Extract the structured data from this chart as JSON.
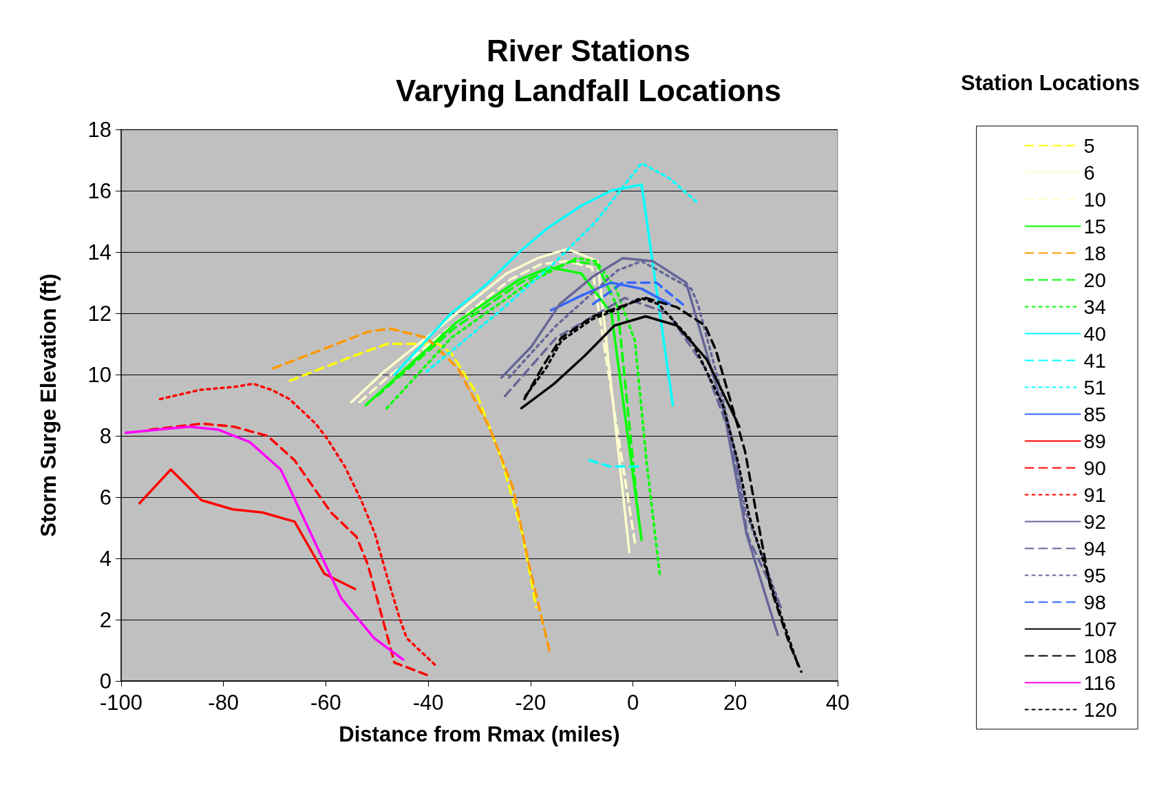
{
  "chart_data": {
    "type": "line",
    "title": "River Stations",
    "subtitle": "Varying Landfall Locations",
    "xlabel": "Distance from Rmax (miles)",
    "ylabel": "Storm Surge Elevation (ft)",
    "legend_title": "Station Locations",
    "xlim": [
      -100,
      40
    ],
    "xticks": [
      -100,
      -80,
      -60,
      -40,
      -20,
      0,
      20,
      40
    ],
    "ylim": [
      0,
      18
    ],
    "yticks": [
      0,
      2,
      4,
      6,
      8,
      10,
      12,
      14,
      16,
      18
    ],
    "grid": "y",
    "legend": "right",
    "marker": "none",
    "series": [
      {
        "name": "5",
        "color": "#ffff00",
        "line_style": "dashed",
        "x": [
          -67,
          -54.7,
          -48,
          -38.1,
          -35.5,
          -30.6,
          -25.8,
          -21.6,
          -18.9
        ],
        "values": [
          9.8,
          10.6,
          11,
          11,
          10.7,
          9.4,
          7.3,
          4.8,
          2.4
        ]
      },
      {
        "name": "6",
        "color": "#ffffcc",
        "line_style": "solid",
        "x": [
          -55,
          -48.6,
          -24.7,
          -18.6,
          -12.8,
          -6.9,
          -0.7
        ],
        "values": [
          9.1,
          10.1,
          13.3,
          13.8,
          14.1,
          13.7,
          4.2
        ]
      },
      {
        "name": "10",
        "color": "#ffffcc",
        "line_style": "dashed",
        "x": [
          -53.4,
          -48,
          -24,
          -18,
          -13,
          -8,
          0.4
        ],
        "values": [
          9.1,
          9.9,
          13.1,
          13.6,
          13.7,
          13.5,
          4.5
        ]
      },
      {
        "name": "15",
        "color": "#00ff00",
        "line_style": "solid",
        "x": [
          -52.2,
          -34.5,
          -22.2,
          -16.2,
          -10.1,
          -4.2,
          1.7
        ],
        "values": [
          9,
          11.7,
          13.1,
          13.5,
          13.3,
          12,
          4.6
        ]
      },
      {
        "name": "18",
        "color": "#ff9900",
        "line_style": "dashed",
        "x": [
          -70.3,
          -51.7,
          -47.4,
          -40.3,
          -36.6,
          -34.2,
          -28.1,
          -23.4,
          -20.3,
          -16.2
        ],
        "values": [
          10.2,
          11.4,
          11.5,
          11.2,
          10.6,
          10.2,
          8.3,
          6.3,
          3.8,
          0.9
        ]
      },
      {
        "name": "20",
        "color": "#00ff00",
        "line_style": "dashed",
        "x": [
          -50,
          -35,
          -22,
          -12,
          -7,
          -3,
          1.2
        ],
        "values": [
          9.3,
          11.5,
          13,
          13.7,
          13.6,
          12.2,
          5.2
        ]
      },
      {
        "name": "34",
        "color": "#00ff00",
        "line_style": "dotted",
        "x": [
          -48.1,
          -35.5,
          -20.3,
          -11,
          -7.2,
          -3.3,
          0.4,
          2.7,
          5.3
        ],
        "values": [
          8.9,
          11.2,
          13,
          13.8,
          13.7,
          12.8,
          11.1,
          7.1,
          3.4
        ]
      },
      {
        "name": "40",
        "color": "#00ffff",
        "line_style": "solid",
        "x": [
          -46.6,
          -35.5,
          -28.9,
          -22.2,
          -16.5,
          -10.2,
          -4.3,
          1.7,
          7.8
        ],
        "values": [
          10,
          12,
          12.9,
          14,
          14.8,
          15.5,
          16,
          16.2,
          9
        ]
      },
      {
        "name": "41",
        "color": "#00ffff",
        "line_style": "dashed",
        "x": [
          -8.5,
          -4.5,
          1.5
        ],
        "values": [
          7.2,
          7,
          7
        ]
      },
      {
        "name": "51",
        "color": "#00ffff",
        "line_style": "dotted",
        "x": [
          -40.3,
          -25.8,
          -15,
          -7.2,
          1.7,
          7.2,
          12.7
        ],
        "values": [
          10.1,
          12.1,
          13.7,
          15,
          16.9,
          16.4,
          15.6
        ]
      },
      {
        "name": "85",
        "color": "#3366ff",
        "line_style": "solid",
        "x": [
          -16,
          -9.8,
          -4.3,
          1.7,
          7.2
        ],
        "values": [
          12.1,
          12.6,
          13,
          12.8,
          12.3
        ]
      },
      {
        "name": "89",
        "color": "#ff0000",
        "line_style": "solid",
        "x": [
          -96.4,
          -90.3,
          -84.3,
          -78.2,
          -72.4,
          -66.1,
          -60.3,
          -54.3
        ],
        "values": [
          5.8,
          6.9,
          5.9,
          5.6,
          5.5,
          5.2,
          3.5,
          3
        ]
      },
      {
        "name": "90",
        "color": "#ff0000",
        "line_style": "dashed",
        "x": [
          -94.4,
          -84.1,
          -78,
          -71.4,
          -66.1,
          -59,
          -54,
          -51.8,
          -46.6,
          -40.3
        ],
        "values": [
          8.2,
          8.4,
          8.3,
          8,
          7.2,
          5.5,
          4.7,
          3.8,
          0.6,
          0.2
        ]
      },
      {
        "name": "91",
        "color": "#ff0000",
        "line_style": "dotted",
        "x": [
          -92.4,
          -84.6,
          -77.8,
          -74.2,
          -70.6,
          -67.1,
          -62,
          -59.7,
          -56.3,
          -53.1,
          -50.4,
          -48.2,
          -45.5,
          -44.2,
          -38.5
        ],
        "values": [
          9.2,
          9.5,
          9.6,
          9.7,
          9.5,
          9.2,
          8.4,
          7.9,
          7,
          5.9,
          4.8,
          3.5,
          2,
          1.4,
          0.5
        ]
      },
      {
        "name": "92",
        "color": "#666699",
        "line_style": "solid",
        "x": [
          -25.7,
          -19.9,
          -14.3,
          -7.8,
          -2,
          3.9,
          10.4,
          17.9,
          22.2,
          28.3
        ],
        "values": [
          9.9,
          10.9,
          12.3,
          13.2,
          13.8,
          13.7,
          13,
          8.7,
          4.8,
          1.5
        ]
      },
      {
        "name": "94",
        "color": "#666699",
        "line_style": "dashed",
        "x": [
          -25,
          -15,
          -1.6,
          6.9,
          14.2,
          19.1,
          22.5,
          28.9
        ],
        "values": [
          9.3,
          11.2,
          12.5,
          12,
          10.2,
          8,
          4.7,
          2.4
        ]
      },
      {
        "name": "95",
        "color": "#666699",
        "line_style": "dotted",
        "x": [
          -24.2,
          -15,
          -3,
          1.7,
          11.4,
          12.7,
          16.7,
          20.2,
          21.9,
          28.9
        ],
        "values": [
          9.9,
          11.6,
          13.4,
          13.7,
          12.8,
          12.3,
          9.8,
          7.3,
          5.6,
          2.4
        ]
      },
      {
        "name": "98",
        "color": "#3366ff",
        "line_style": "dashed",
        "x": [
          -7.8,
          -2,
          1.7,
          4.6,
          10.4
        ],
        "values": [
          12.3,
          13,
          13,
          13,
          12.2
        ]
      },
      {
        "name": "107",
        "color": "#000000",
        "line_style": "solid",
        "x": [
          -21.8,
          -15.4,
          -9.5,
          -3.6,
          2.5,
          8.6,
          14.4,
          20.8
        ],
        "values": [
          8.9,
          9.7,
          10.6,
          11.6,
          11.9,
          11.6,
          10.5,
          8.3
        ]
      },
      {
        "name": "108",
        "color": "#000000",
        "line_style": "dashed",
        "x": [
          -21.2,
          -17.5,
          -14,
          -7.8,
          -1,
          2.5,
          8.6,
          14.1,
          16.2,
          21.9,
          24.2,
          26.8,
          30.6,
          32.9
        ],
        "values": [
          9.2,
          10.3,
          11.2,
          11.9,
          12.3,
          12.5,
          12.2,
          11.6,
          10.8,
          7.5,
          5.4,
          3.1,
          1.2,
          0.3
        ]
      },
      {
        "name": "116",
        "color": "#ff00ff",
        "line_style": "solid",
        "x": [
          -99.1,
          -86.7,
          -81,
          -74.9,
          -68.8,
          -57,
          -50.6,
          -44.9
        ],
        "values": [
          8.1,
          8.3,
          8.2,
          7.8,
          6.9,
          2.7,
          1.4,
          0.7
        ]
      },
      {
        "name": "120",
        "color": "#000000",
        "line_style": "dotted",
        "x": [
          -21,
          -17,
          -14,
          -8,
          -2,
          1.5,
          5,
          11.5,
          17.6,
          20.6,
          22.7,
          28,
          32.5
        ],
        "values": [
          9.3,
          10.2,
          11.1,
          11.8,
          12.2,
          12.5,
          12.3,
          11.1,
          9,
          7.1,
          5.4,
          2.6,
          0.4
        ]
      }
    ]
  }
}
